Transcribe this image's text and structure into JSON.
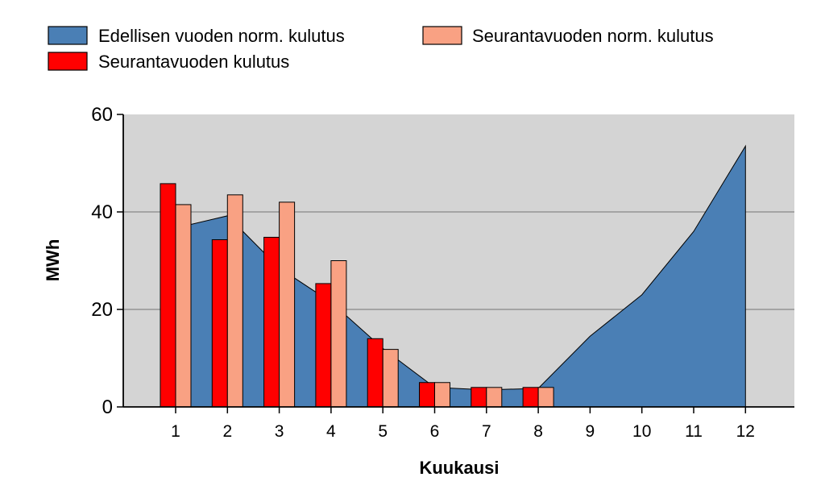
{
  "chart_data": {
    "type": "bar",
    "title": "",
    "xlabel": "Kuukausi",
    "ylabel": "MWh",
    "ylim": [
      0,
      60
    ],
    "yticks": [
      0,
      20,
      40,
      60
    ],
    "grid": true,
    "legend_position": "top-left",
    "categories": [
      "1",
      "2",
      "3",
      "4",
      "5",
      "6",
      "7",
      "8",
      "9",
      "10",
      "11",
      "12"
    ],
    "series": [
      {
        "name": "Edellisen vuoden norm. kulutus",
        "kind": "area",
        "color": "#4A7FB5",
        "values": [
          36.7,
          39.2,
          28.5,
          21.5,
          12.0,
          4.0,
          3.5,
          3.8,
          14.5,
          23.0,
          36.0,
          53.5
        ]
      },
      {
        "name": "Seurantavuoden norm. kulutus",
        "kind": "bar",
        "color": "#F9A183",
        "values": [
          41.5,
          43.5,
          42.0,
          30.0,
          11.8,
          5.0,
          4.0,
          4.0,
          null,
          null,
          null,
          null
        ]
      },
      {
        "name": "Seurantavuoden kulutus",
        "kind": "bar",
        "color": "#FF0000",
        "values": [
          45.8,
          34.3,
          34.8,
          25.3,
          14.0,
          5.0,
          4.0,
          4.0,
          null,
          null,
          null,
          null
        ]
      }
    ]
  }
}
